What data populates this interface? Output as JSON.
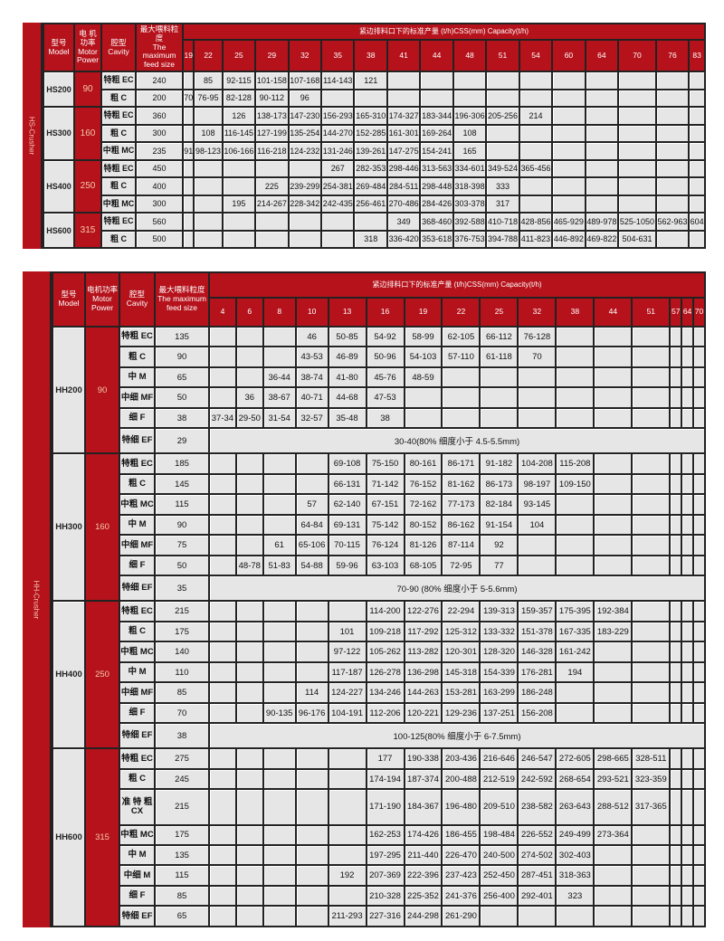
{
  "tables": [
    {
      "side_label": "HS-Crusher",
      "header": {
        "model_cn": "型号",
        "model_en": "Model",
        "power_cn": "电 机 功率",
        "power_en": "Motor Power",
        "cavity_cn": "腔型",
        "cavity_en": "Cavity",
        "feed_cn": "最大喂料粒度",
        "feed_en": "The maximum feed size",
        "capacity": "紧边排料口下的标准产量 (t/h)CSS(mm) Capacity(t/h)"
      },
      "css": [
        "19",
        "22",
        "25",
        "29",
        "32",
        "35",
        "38",
        "41",
        "44",
        "48",
        "51",
        "54",
        "60",
        "64",
        "70",
        "76",
        "83"
      ],
      "models": [
        {
          "name": "HS200",
          "power": "90",
          "rows": [
            {
              "cavity": "特粗 EC",
              "feed": "240",
              "values": [
                "",
                "85",
                "92-115",
                "101-158",
                "107-168",
                "114-143",
                "121"
              ]
            },
            {
              "cavity": "粗 C",
              "feed": "200",
              "values": [
                "70",
                "76-95",
                "82-128",
                "90-112",
                "96"
              ]
            }
          ]
        },
        {
          "name": "HS300",
          "power": "160",
          "rows": [
            {
              "cavity": "特粗 EC",
              "feed": "360",
              "values": [
                "",
                "",
                "126",
                "138-173",
                "147-230",
                "156-293",
                "165-310",
                "174-327",
                "183-344",
                "196-306",
                "205-256",
                "214"
              ]
            },
            {
              "cavity": "粗 C",
              "feed": "300",
              "values": [
                "",
                "108",
                "116-145",
                "127-199",
                "135-254",
                "144-270",
                "152-285",
                "161-301",
                "169-264",
                "108"
              ]
            },
            {
              "cavity": "中粗 MC",
              "feed": "235",
              "values": [
                "91",
                "98-123",
                "106-166",
                "116-218",
                "124-232",
                "131-246",
                "139-261",
                "147-275",
                "154-241",
                "165"
              ]
            }
          ]
        },
        {
          "name": "HS400",
          "power": "250",
          "rows": [
            {
              "cavity": "特粗 EC",
              "feed": "450",
              "values": [
                "",
                "",
                "",
                "",
                "",
                "267",
                "282-353",
                "298-446",
                "313-563",
                "334-601",
                "349-524",
                "365-456"
              ]
            },
            {
              "cavity": "粗 C",
              "feed": "400",
              "values": [
                "",
                "",
                "",
                "225",
                "239-299",
                "254-381",
                "269-484",
                "284-511",
                "298-448",
                "318-398",
                "333"
              ]
            },
            {
              "cavity": "中粗 MC",
              "feed": "300",
              "values": [
                "",
                "",
                "195",
                "214-267",
                "228-342",
                "242-435",
                "256-461",
                "270-486",
                "284-426",
                "303-378",
                "317"
              ]
            }
          ]
        },
        {
          "name": "HS600",
          "power": "315",
          "rows": [
            {
              "cavity": "特粗 EC",
              "feed": "560",
              "values": [
                "",
                "",
                "",
                "",
                "",
                "",
                "",
                "349",
                "368-460",
                "392-588",
                "410-718",
                "428-856",
                "465-929",
                "489-978",
                "525-1050",
                "562-963",
                "604"
              ]
            },
            {
              "cavity": "粗 C",
              "feed": "500",
              "values": [
                "",
                "",
                "",
                "",
                "",
                "",
                "318",
                "336-420",
                "353-618",
                "376-753",
                "394-788",
                "411-823",
                "446-892",
                "469-822",
                "504-631"
              ]
            }
          ]
        }
      ]
    },
    {
      "side_label": "HH-Crusher",
      "header": {
        "model_cn": "型号",
        "model_en": "Model",
        "power_cn": "电机功率",
        "power_en": "Motor Power",
        "cavity_cn": "腔型",
        "cavity_en": "Cavity",
        "feed_cn": "最大喂料粒度",
        "feed_en": "The maximum feed size",
        "capacity": "紧边排料口下的标准产量 (t/h)CSS(mm) Capacity(t/h)"
      },
      "css": [
        "4",
        "6",
        "8",
        "10",
        "13",
        "16",
        "19",
        "22",
        "25",
        "32",
        "38",
        "44",
        "51",
        "57",
        "64",
        "70"
      ],
      "models": [
        {
          "name": "HH200",
          "power": "90",
          "rows": [
            {
              "cavity": "特粗 EC",
              "feed": "135",
              "values": [
                "",
                "",
                "",
                "46",
                "50-85",
                "54-92",
                "58-99",
                "62-105",
                "66-112",
                "76-128"
              ]
            },
            {
              "cavity": "粗 C",
              "feed": "90",
              "values": [
                "",
                "",
                "",
                "43-53",
                "46-89",
                "50-96",
                "54-103",
                "57-110",
                "61-118",
                "70"
              ]
            },
            {
              "cavity": "中 M",
              "feed": "65",
              "values": [
                "",
                "",
                "36-44",
                "38-74",
                "41-80",
                "45-76",
                "48-59"
              ]
            },
            {
              "cavity": "中细 MF",
              "feed": "50",
              "values": [
                "",
                "36",
                "38-67",
                "40-71",
                "44-68",
                "47-53"
              ]
            },
            {
              "cavity": "细 F",
              "feed": "38",
              "values": [
                "37-34",
                "29-50",
                "31-54",
                "32-57",
                "35-48",
                "38"
              ]
            },
            {
              "cavity": "特细 EF",
              "feed": "29",
              "note": "30-40(80% 细度小于 4.5-5.5mm)"
            }
          ]
        },
        {
          "name": "HH300",
          "power": "160",
          "rows": [
            {
              "cavity": "特粗 EC",
              "feed": "185",
              "values": [
                "",
                "",
                "",
                "",
                "69-108",
                "75-150",
                "80-161",
                "86-171",
                "91-182",
                "104-208",
                "115-208"
              ]
            },
            {
              "cavity": "粗 C",
              "feed": "145",
              "values": [
                "",
                "",
                "",
                "",
                "66-131",
                "71-142",
                "76-152",
                "81-162",
                "86-173",
                "98-197",
                "109-150"
              ]
            },
            {
              "cavity": "中粗 MC",
              "feed": "115",
              "values": [
                "",
                "",
                "",
                "57",
                "62-140",
                "67-151",
                "72-162",
                "77-173",
                "82-184",
                "93-145"
              ]
            },
            {
              "cavity": "中 M",
              "feed": "90",
              "values": [
                "",
                "",
                "",
                "64-84",
                "69-131",
                "75-142",
                "80-152",
                "86-162",
                "91-154",
                "104"
              ]
            },
            {
              "cavity": "中细 MF",
              "feed": "75",
              "values": [
                "",
                "",
                "61",
                "65-106",
                "70-115",
                "76-124",
                "81-126",
                "87-114",
                "92"
              ]
            },
            {
              "cavity": "细 F",
              "feed": "50",
              "values": [
                "",
                "48-78",
                "51-83",
                "54-88",
                "59-96",
                "63-103",
                "68-105",
                "72-95",
                "77"
              ]
            },
            {
              "cavity": "特细 EF",
              "feed": "35",
              "note": "70-90 (80% 细度小于 5-5.6mm)"
            }
          ]
        },
        {
          "name": "HH400",
          "power": "250",
          "rows": [
            {
              "cavity": "特粗 EC",
              "feed": "215",
              "values": [
                "",
                "",
                "",
                "",
                "",
                "114-200",
                "122-276",
                "22-294",
                "139-313",
                "159-357",
                "175-395",
                "192-384"
              ]
            },
            {
              "cavity": "粗 C",
              "feed": "175",
              "values": [
                "",
                "",
                "",
                "",
                "101",
                "109-218",
                "117-292",
                "125-312",
                "133-332",
                "151-378",
                "167-335",
                "183-229"
              ]
            },
            {
              "cavity": "中粗 MC",
              "feed": "140",
              "values": [
                "",
                "",
                "",
                "",
                "97-122",
                "105-262",
                "113-282",
                "120-301",
                "128-320",
                "146-328",
                "161-242"
              ]
            },
            {
              "cavity": "中 M",
              "feed": "110",
              "values": [
                "",
                "",
                "",
                "",
                "117-187",
                "126-278",
                "136-298",
                "145-318",
                "154-339",
                "176-281",
                "194"
              ]
            },
            {
              "cavity": "中细 MF",
              "feed": "85",
              "values": [
                "",
                "",
                "",
                "114",
                "124-227",
                "134-246",
                "144-263",
                "153-281",
                "163-299",
                "186-248"
              ]
            },
            {
              "cavity": "细 F",
              "feed": "70",
              "values": [
                "",
                "",
                "90-135",
                "96-176",
                "104-191",
                "112-206",
                "120-221",
                "129-236",
                "137-251",
                "156-208"
              ]
            },
            {
              "cavity": "特细 EF",
              "feed": "38",
              "note": "100-125(80% 细度小于 6-7.5mm)"
            }
          ]
        },
        {
          "name": "HH600",
          "power": "315",
          "rows": [
            {
              "cavity": "特粗 EC",
              "feed": "275",
              "values": [
                "",
                "",
                "",
                "",
                "",
                "177",
                "190-338",
                "203-436",
                "216-646",
                "246-547",
                "272-605",
                "298-665",
                "328-511"
              ]
            },
            {
              "cavity": "粗 C",
              "feed": "245",
              "values": [
                "",
                "",
                "",
                "",
                "",
                "174-194",
                "187-374",
                "200-488",
                "212-519",
                "242-592",
                "268-654",
                "293-521",
                "323-359"
              ]
            },
            {
              "cavity": "准 特 粗 CX",
              "feed": "215",
              "values": [
                "",
                "",
                "",
                "",
                "",
                "171-190",
                "184-367",
                "196-480",
                "209-510",
                "238-582",
                "263-643",
                "288-512",
                "317-365"
              ]
            },
            {
              "cavity": "中粗 MC",
              "feed": "175",
              "values": [
                "",
                "",
                "",
                "",
                "",
                "162-253",
                "174-426",
                "186-455",
                "198-484",
                "226-552",
                "249-499",
                "273-364"
              ]
            },
            {
              "cavity": "中 M",
              "feed": "135",
              "values": [
                "",
                "",
                "",
                "",
                "",
                "197-295",
                "211-440",
                "226-470",
                "240-500",
                "274-502",
                "302-403"
              ]
            },
            {
              "cavity": "中细 M",
              "feed": "115",
              "values": [
                "",
                "",
                "",
                "",
                "192",
                "207-369",
                "222-396",
                "237-423",
                "252-450",
                "287-451",
                "318-363"
              ]
            },
            {
              "cavity": "细 F",
              "feed": "85",
              "values": [
                "",
                "",
                "",
                "",
                "",
                "210-328",
                "225-352",
                "241-376",
                "256-400",
                "292-401",
                "323"
              ]
            },
            {
              "cavity": "特细 EF",
              "feed": "65",
              "values": [
                "",
                "",
                "",
                "",
                "211-293",
                "227-316",
                "244-298",
                "261-290"
              ]
            }
          ]
        }
      ]
    }
  ],
  "colors": {
    "header_red": "#b5121b",
    "cell_gray": "#e6e6e6",
    "power_text": "#f5c8a8",
    "grid": "#222222"
  }
}
